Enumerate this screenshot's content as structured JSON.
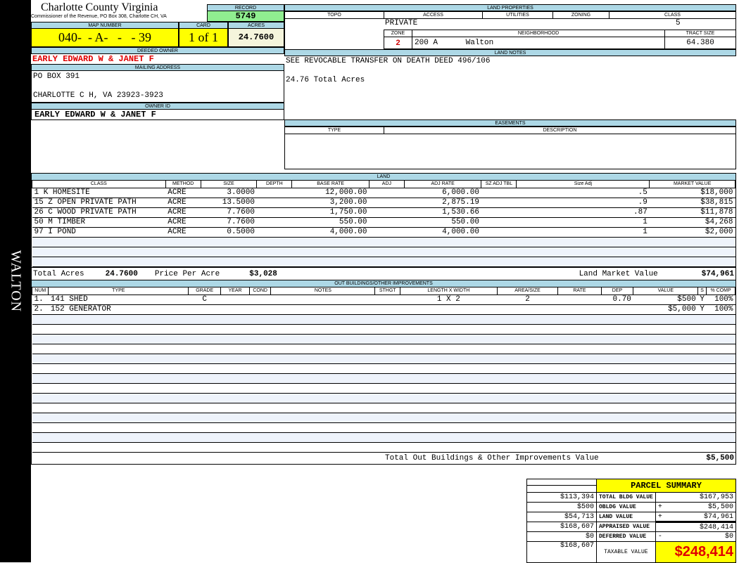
{
  "side_label": "WALTON",
  "header": {
    "title": "Charlotte County Virginia",
    "subtitle": "Commissioner of the Revenue, PO Box 308, Charlotte CH, VA",
    "record_label": "RECORD",
    "record": "5749"
  },
  "map": {
    "map_label": "MAP NUMBER",
    "map_number": "040-  - A-   -   - 39",
    "card_label": "CARD",
    "card": "1 of 1",
    "acres_label": "ACRES",
    "acres": "24.7600"
  },
  "owner": {
    "deeded_label": "DEEDED OWNER",
    "deeded": "EARLY EDWARD W & JANET F",
    "mailing_label": "MAILING ADDRESS",
    "address1": "PO BOX 391",
    "address2": "CHARLOTTE C H, VA 23923-3923",
    "owner_id_label": "OWNER ID",
    "owner_id": "EARLY EDWARD W & JANET F"
  },
  "land_properties": {
    "title": "LAND PROPERTIES",
    "topo_label": "TOPO",
    "access_label": "ACCESS",
    "utilities_label": "UTILITIES",
    "zoning_label": "ZONING",
    "class_label": "CLASS",
    "access": "PRIVATE",
    "class": "5",
    "zone_label": "ZONE",
    "neighborhood_label": "NEIGHBORHOOD",
    "tract_label": "TRACT SIZE",
    "zone": "2",
    "neighborhood": "200 A      Walton",
    "tract_size": "64.380"
  },
  "land_notes": {
    "title": "LAND NOTES",
    "line1": "SEE REVOCABLE TRANSFER ON DEATH DEED 496/106",
    "line2": "24.76 Total Acres"
  },
  "easements": {
    "title": "EASEMENTS",
    "type_label": "TYPE",
    "desc_label": "DESCRIPTION"
  },
  "land": {
    "title": "LAND",
    "headers": [
      "CLASS",
      "METHOD",
      "SIZE",
      "DEPTH",
      "BASE RATE",
      "ADJ",
      "ADJ RATE",
      "SZ ADJ TBL",
      "Size Adj",
      "MARKET VALUE"
    ],
    "rows": [
      [
        "1 K HOMESITE",
        "ACRE",
        "3.0000",
        "",
        "12,000.00",
        "",
        "6,000.00",
        "",
        ".5",
        "$18,000"
      ],
      [
        "15 Z OPEN PRIVATE PATH",
        "ACRE",
        "13.5000",
        "",
        "3,200.00",
        "",
        "2,875.19",
        "",
        ".9",
        "$38,815"
      ],
      [
        "26 C WOOD PRIVATE PATH",
        "ACRE",
        "7.7600",
        "",
        "1,750.00",
        "",
        "1,530.66",
        "",
        ".87",
        "$11,878"
      ],
      [
        "50 M TIMBER",
        "ACRE",
        "7.7600",
        "",
        "550.00",
        "",
        "550.00",
        "",
        "1",
        "$4,268"
      ],
      [
        "97 I POND",
        "ACRE",
        "0.5000",
        "",
        "4,000.00",
        "",
        "4,000.00",
        "",
        "1",
        "$2,000"
      ]
    ],
    "total_acres_label": "Total Acres",
    "total_acres": "24.7600",
    "ppa_label": "Price Per Acre",
    "ppa": "$3,028",
    "lmv_label": "Land Market Value",
    "lmv": "$74,961"
  },
  "outbuildings": {
    "title": "OUT BUILDINGS/OTHER IMPROVEMENTS",
    "headers": [
      "NUM",
      "TYPE",
      "GRADE",
      "YEAR",
      "COND",
      "NOTES",
      "STHGT",
      "LENGTH X WIDTH",
      "AREA/SIZE",
      "RATE",
      "DEP",
      "VALUE",
      "S",
      "% COMP"
    ],
    "rows": [
      [
        "1.",
        "141 SHED",
        "C",
        "",
        "",
        "",
        "",
        "1 X 2",
        "2",
        "",
        "0.70",
        "$500",
        "Y",
        "100%"
      ],
      [
        "2.",
        "152 GENERATOR",
        "",
        "",
        "",
        "",
        "",
        "",
        "",
        "",
        "",
        "$5,000",
        "Y",
        "100%"
      ]
    ],
    "total_label": "Total Out Buildings & Other Improvements Value",
    "total": "$5,500"
  },
  "summary": {
    "title": "PARCEL SUMMARY",
    "rows": [
      {
        "prev": "$113,394",
        "label": "TOTAL BLDG VALUE",
        "op": "",
        "value": "$167,953"
      },
      {
        "prev": "$500",
        "label": "OBLDG VALUE",
        "op": "+",
        "value": "$5,500"
      },
      {
        "prev": "$54,713",
        "label": "LAND VALUE",
        "op": "+",
        "value": "$74,961"
      },
      {
        "prev": "$168,607",
        "label": "APPRAISED VALUE",
        "op": "",
        "value": "$248,414"
      },
      {
        "prev": "$0",
        "label": "DEFERRED VALUE",
        "op": "-",
        "value": "$0"
      }
    ],
    "taxable_prev": "$168,607",
    "taxable_label": "TAXABLE VALUE",
    "taxable": "$248,414"
  },
  "colors": {
    "header_bg": "#add8e6",
    "yellow": "#ffff00",
    "record_green": "#90ee90",
    "owner_red": "#e00000"
  }
}
